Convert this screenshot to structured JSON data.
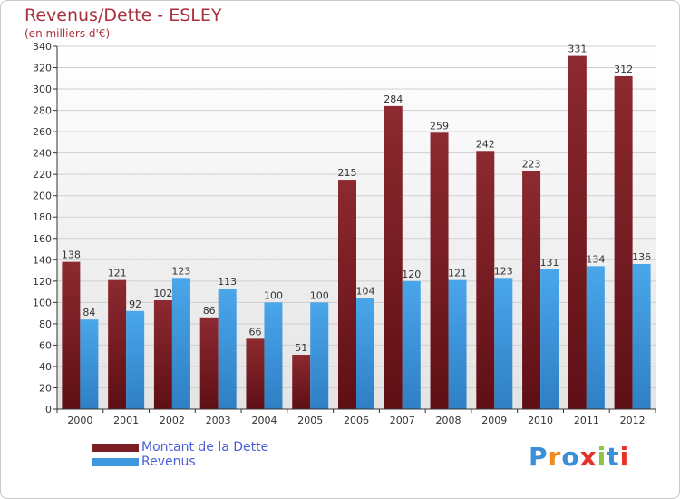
{
  "header": {
    "title": "Revenus/Dette - ESLEY",
    "subtitle": "(en milliers d'€)"
  },
  "legend": {
    "items": [
      {
        "label": "Montant de la Dette",
        "color": "#7a1f24"
      },
      {
        "label": "Revenus",
        "color": "#3f97dd"
      }
    ]
  },
  "logo": {
    "text": "Proxiti",
    "letters": [
      "P",
      "r",
      "o",
      "x",
      "i",
      "t",
      "i"
    ],
    "colors": [
      "#3a8fd8",
      "#f28c1e",
      "#3a8fd8",
      "#e6332a",
      "#8cc63f",
      "#3a8fd8",
      "#e6332a"
    ]
  },
  "chart_data": {
    "type": "bar",
    "title": "Revenus/Dette - ESLEY",
    "subtitle": "(en milliers d'€)",
    "categories": [
      "2000",
      "2001",
      "2002",
      "2003",
      "2004",
      "2005",
      "2006",
      "2007",
      "2008",
      "2009",
      "2010",
      "2011",
      "2012"
    ],
    "series": [
      {
        "name": "Montant de la Dette",
        "color": "#7a1f24",
        "values": [
          138,
          121,
          102,
          86,
          66,
          51,
          215,
          284,
          259,
          242,
          223,
          331,
          312
        ]
      },
      {
        "name": "Revenus",
        "color": "#3f97dd",
        "values": [
          84,
          92,
          123,
          113,
          100,
          100,
          104,
          120,
          121,
          123,
          131,
          134,
          136
        ]
      }
    ],
    "ylim": [
      0,
      340
    ],
    "yticks": [
      0,
      20,
      40,
      60,
      80,
      100,
      120,
      140,
      160,
      180,
      200,
      220,
      240,
      260,
      280,
      300,
      320,
      340
    ],
    "grid": true,
    "legend_position": "bottom-left"
  }
}
